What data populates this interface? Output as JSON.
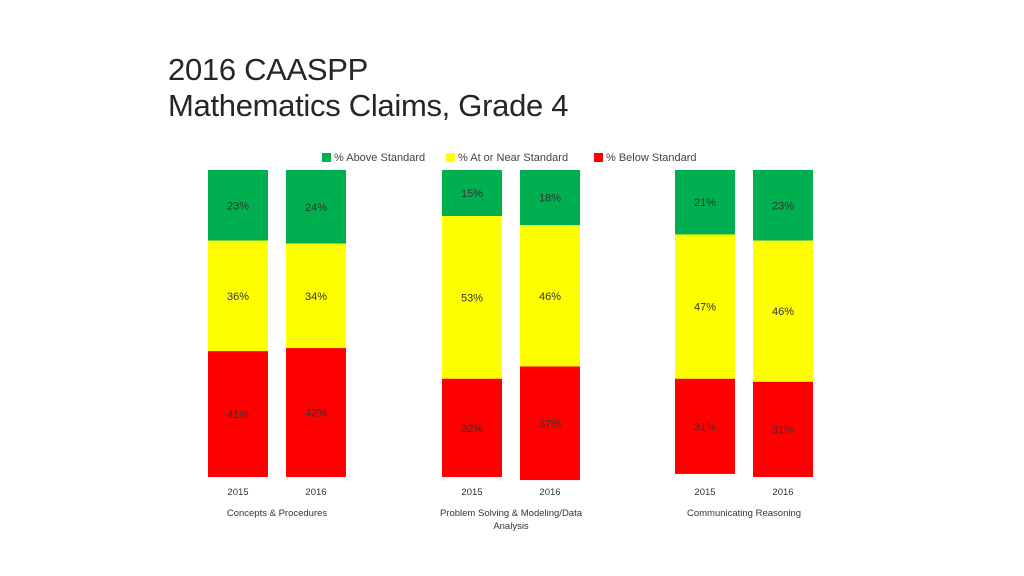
{
  "title": {
    "line1": "2016 CAASPP",
    "line2": "Mathematics Claims, Grade 4"
  },
  "colors": {
    "above": "#00B050",
    "near": "#FFFF00",
    "below": "#FF0000"
  },
  "chart_data": {
    "type": "bar",
    "stacked": true,
    "ylim": [
      0,
      100
    ],
    "grid": false,
    "legend_position": "top",
    "series": [
      {
        "name": "% Above Standard",
        "key": "above"
      },
      {
        "name": "% At or Near Standard",
        "key": "near"
      },
      {
        "name": "% Below Standard",
        "key": "below"
      }
    ],
    "groups": [
      {
        "name": "Concepts & Procedures",
        "bars": [
          {
            "year": "2015",
            "above": 23,
            "near": 36,
            "below": 41
          },
          {
            "year": "2016",
            "above": 24,
            "near": 34,
            "below": 42
          }
        ]
      },
      {
        "name": "Problem Solving & Modeling/Data Analysis",
        "bars": [
          {
            "year": "2015",
            "above": 15,
            "near": 53,
            "below": 32
          },
          {
            "year": "2016",
            "above": 18,
            "near": 46,
            "below": 37
          }
        ]
      },
      {
        "name": "Communicating Reasoning",
        "bars": [
          {
            "year": "2015",
            "above": 21,
            "near": 47,
            "below": 31
          },
          {
            "year": "2016",
            "above": 23,
            "near": 46,
            "below": 31
          }
        ]
      }
    ]
  }
}
